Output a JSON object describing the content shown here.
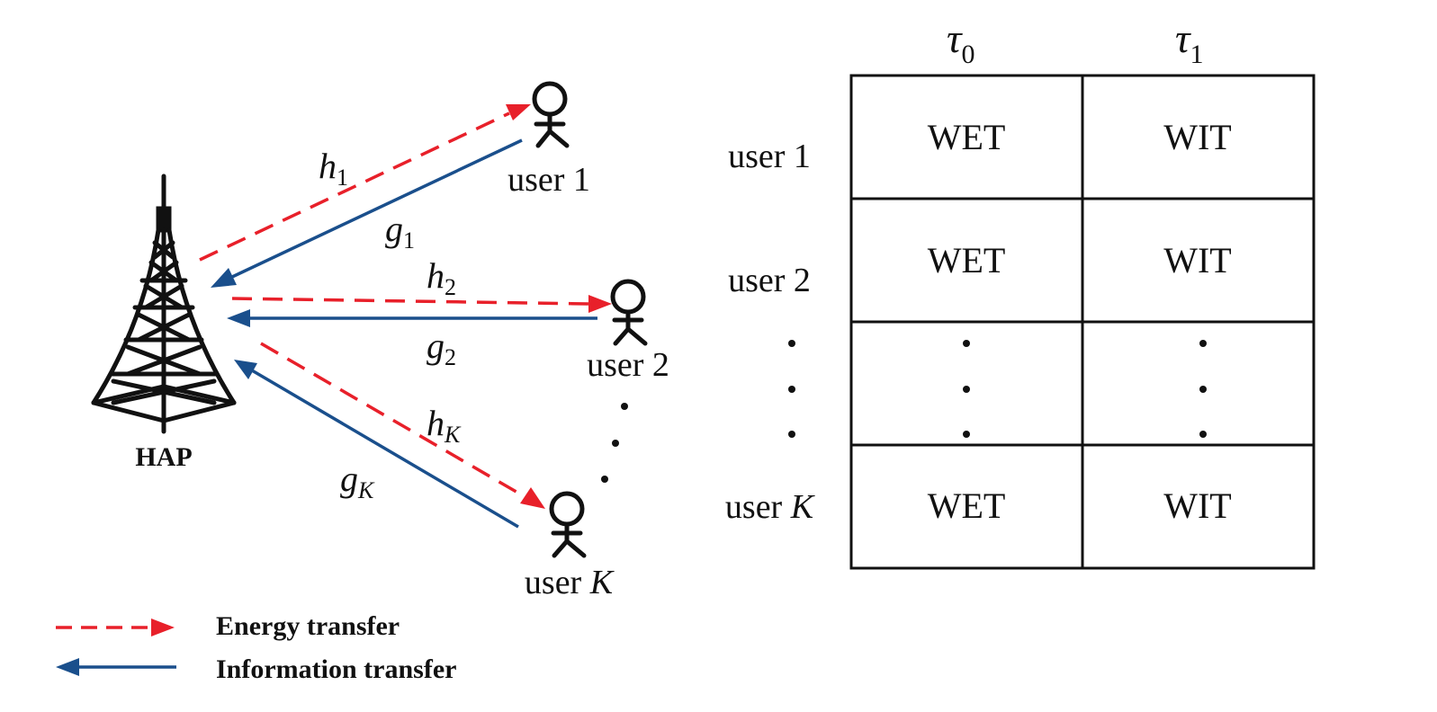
{
  "colors": {
    "energy": "#e8202a",
    "information": "#1a4f8c",
    "ink": "#111111"
  },
  "icons": {
    "tower": "transmission-tower-icon",
    "user": "stick-figure-user-icon"
  },
  "hap_label": "HAP",
  "users": {
    "user1": "user 1",
    "user2": "user 2",
    "userK_prefix": "user ",
    "userK_var": "K"
  },
  "channels": {
    "h1": {
      "base": "h",
      "sub": "1"
    },
    "g1": {
      "base": "g",
      "sub": "1"
    },
    "h2": {
      "base": "h",
      "sub": "2"
    },
    "g2": {
      "base": "g",
      "sub": "2"
    },
    "hK": {
      "base": "h",
      "sub": "K"
    },
    "gK": {
      "base": "g",
      "sub": "K"
    }
  },
  "legend": {
    "energy": "Energy transfer",
    "information": "Information transfer"
  },
  "schedule": {
    "columns": [
      {
        "base": "τ",
        "sub": "0"
      },
      {
        "base": "τ",
        "sub": "1"
      }
    ],
    "row_labels": {
      "r1": "user 1",
      "r2": "user 2",
      "rK_prefix": "user ",
      "rK_var": "K"
    },
    "cells": {
      "r1c0": "WET",
      "r1c1": "WIT",
      "r2c0": "WET",
      "r2c1": "WIT",
      "rKc0": "WET",
      "rKc1": "WIT"
    }
  }
}
